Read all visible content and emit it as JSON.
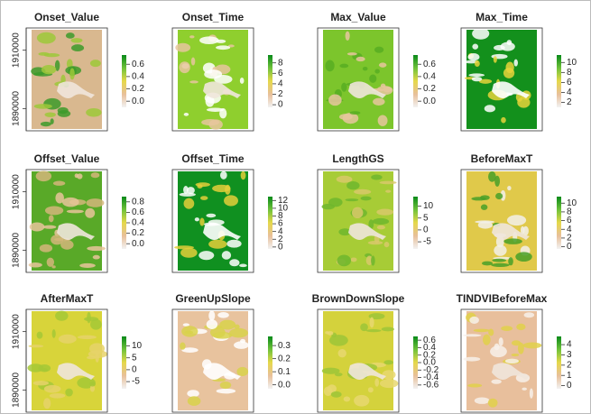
{
  "chart_data": [
    {
      "type": "raster",
      "title": "Onset_Value",
      "clim": [
        -0.1,
        0.75
      ],
      "cticks": [
        {
          "value": 0,
          "label": "0.0"
        },
        0.2,
        0.4,
        0.6
      ],
      "ylim": [
        1883000,
        1917000
      ],
      "yticks": [
        1890000,
        1910000
      ]
    },
    {
      "type": "raster",
      "title": "Onset_Time",
      "clim": [
        -0.5,
        9.5
      ],
      "cticks": [
        0,
        2,
        4,
        6,
        8
      ]
    },
    {
      "type": "raster",
      "title": "Max_Value",
      "clim": [
        -0.1,
        0.75
      ],
      "cticks": [
        {
          "value": 0,
          "label": "0.0"
        },
        0.2,
        0.4,
        0.6
      ]
    },
    {
      "type": "raster",
      "title": "Max_Time",
      "clim": [
        1,
        11.5
      ],
      "cticks": [
        2,
        4,
        6,
        8,
        10
      ]
    },
    {
      "type": "raster",
      "title": "Offset_Value",
      "clim": [
        -0.1,
        0.9
      ],
      "cticks": [
        {
          "value": 0,
          "label": "0.0"
        },
        0.2,
        0.4,
        0.6,
        0.8
      ],
      "ylim": [
        1883000,
        1917000
      ],
      "yticks": [
        1890000,
        1910000
      ]
    },
    {
      "type": "raster",
      "title": "Offset_Time",
      "clim": [
        -0.5,
        13
      ],
      "cticks": [
        0,
        2,
        4,
        6,
        8,
        10,
        12
      ]
    },
    {
      "type": "raster",
      "title": "LengthGS",
      "clim": [
        -8,
        14
      ],
      "cticks": [
        -5,
        0,
        5,
        10
      ]
    },
    {
      "type": "raster",
      "title": "BeforeMaxT",
      "clim": [
        -0.5,
        11.5
      ],
      "cticks": [
        0,
        2,
        4,
        6,
        8,
        10
      ]
    },
    {
      "type": "raster",
      "title": "AfterMaxT",
      "clim": [
        -8,
        14
      ],
      "cticks": [
        -5,
        0,
        5,
        10
      ],
      "ylim": [
        1883000,
        1917000
      ],
      "yticks": [
        1890000,
        1910000
      ]
    },
    {
      "type": "raster",
      "title": "GreenUpSlope",
      "clim": [
        -0.03,
        0.37
      ],
      "cticks": [
        {
          "value": 0,
          "label": "0.0"
        },
        0.1,
        0.2,
        0.3
      ]
    },
    {
      "type": "raster",
      "title": "BrownDownSlope",
      "clim": [
        -0.7,
        0.7
      ],
      "cticks": [
        -0.6,
        -0.4,
        -0.2,
        {
          "value": 0,
          "label": "0.0"
        },
        0.2,
        0.4,
        0.6
      ]
    },
    {
      "type": "raster",
      "title": "TINDVIBeforeMax",
      "clim": [
        -0.3,
        4.8
      ],
      "cticks": [
        0,
        1,
        2,
        3,
        4
      ]
    }
  ]
}
